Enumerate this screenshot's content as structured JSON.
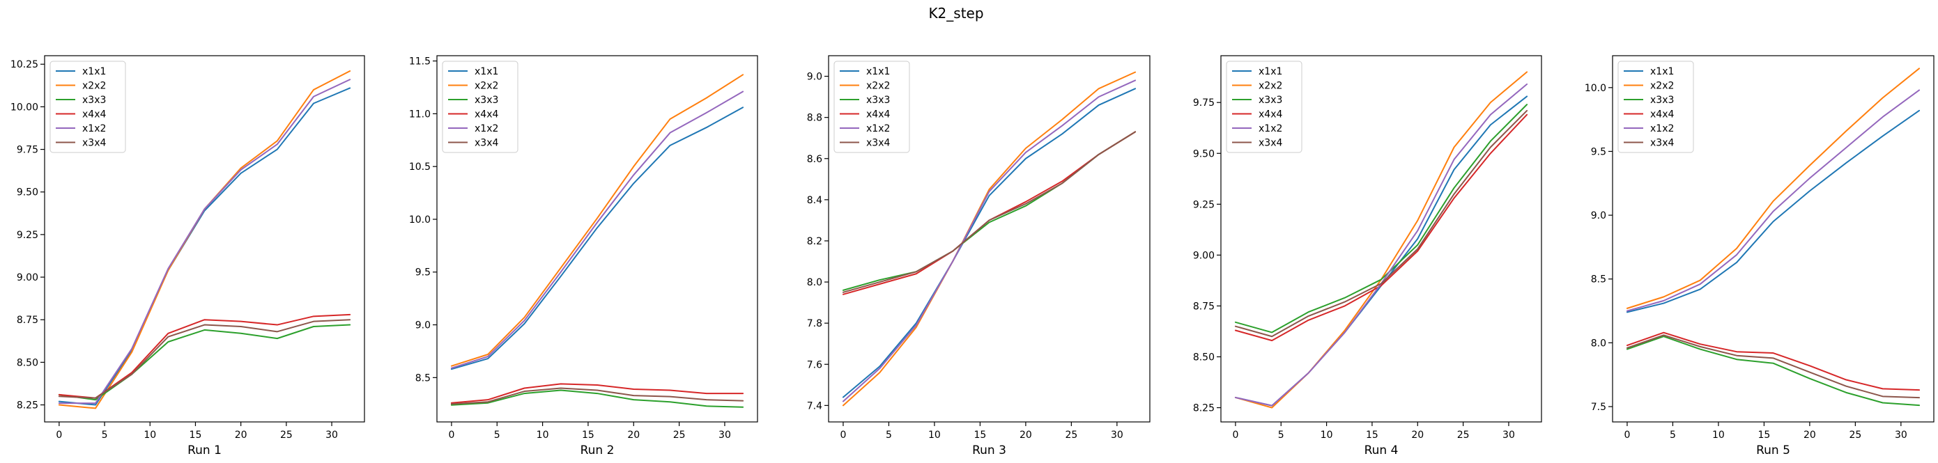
{
  "figure_title": "K2_step",
  "series_colors": {
    "x1x1": "#1f77b4",
    "x2x2": "#ff7f0e",
    "x3x3": "#2ca02c",
    "x4x4": "#d62728",
    "x1x2": "#9467bd",
    "x3x4": "#8c564b"
  },
  "chart_data": [
    {
      "type": "line",
      "title": "",
      "xlabel": "Run 1",
      "ylabel": "",
      "x": [
        0,
        4,
        8,
        12,
        16,
        20,
        24,
        28,
        32
      ],
      "xlim": [
        -1.6,
        33.6
      ],
      "ylim": [
        8.15,
        10.3
      ],
      "xticks": [
        0,
        5,
        10,
        15,
        20,
        25,
        30
      ],
      "yticks": [
        8.25,
        8.5,
        8.75,
        9.0,
        9.25,
        9.5,
        9.75,
        10.0,
        10.25
      ],
      "ytick_labels": [
        "8.25",
        "8.50",
        "8.75",
        "9.00",
        "9.25",
        "9.50",
        "9.75",
        "10.00",
        "10.25"
      ],
      "legend_position": "upper-left",
      "series": [
        {
          "name": "x1x1",
          "values": [
            8.27,
            8.25,
            8.57,
            9.04,
            9.39,
            9.61,
            9.75,
            10.02,
            10.11
          ]
        },
        {
          "name": "x2x2",
          "values": [
            8.25,
            8.23,
            8.56,
            9.04,
            9.4,
            9.64,
            9.8,
            10.1,
            10.21
          ]
        },
        {
          "name": "x3x3",
          "values": [
            8.31,
            8.28,
            8.43,
            8.62,
            8.69,
            8.67,
            8.64,
            8.71,
            8.72
          ]
        },
        {
          "name": "x4x4",
          "values": [
            8.31,
            8.29,
            8.44,
            8.67,
            8.75,
            8.74,
            8.72,
            8.77,
            8.78
          ]
        },
        {
          "name": "x1x2",
          "values": [
            8.26,
            8.26,
            8.58,
            9.05,
            9.4,
            9.63,
            9.78,
            10.06,
            10.16
          ]
        },
        {
          "name": "x3x4",
          "values": [
            8.3,
            8.29,
            8.43,
            8.65,
            8.72,
            8.71,
            8.68,
            8.74,
            8.75
          ]
        }
      ]
    },
    {
      "type": "line",
      "title": "",
      "xlabel": "Run 2",
      "ylabel": "",
      "x": [
        0,
        4,
        8,
        12,
        16,
        20,
        24,
        28,
        32
      ],
      "xlim": [
        -1.6,
        33.6
      ],
      "ylim": [
        8.08,
        11.55
      ],
      "xticks": [
        0,
        5,
        10,
        15,
        20,
        25,
        30
      ],
      "yticks": [
        8.5,
        9.0,
        9.5,
        10.0,
        10.5,
        11.0,
        11.5
      ],
      "ytick_labels": [
        "8.5",
        "9.0",
        "9.5",
        "10.0",
        "10.5",
        "11.0",
        "11.5"
      ],
      "legend_position": "upper-left",
      "series": [
        {
          "name": "x1x1",
          "values": [
            8.58,
            8.68,
            9.01,
            9.46,
            9.92,
            10.34,
            10.7,
            10.87,
            11.06
          ]
        },
        {
          "name": "x2x2",
          "values": [
            8.61,
            8.72,
            9.07,
            9.54,
            10.01,
            10.5,
            10.95,
            11.15,
            11.37
          ]
        },
        {
          "name": "x3x3",
          "values": [
            8.24,
            8.26,
            8.35,
            8.38,
            8.35,
            8.29,
            8.27,
            8.23,
            8.22
          ]
        },
        {
          "name": "x4x4",
          "values": [
            8.26,
            8.29,
            8.4,
            8.44,
            8.43,
            8.39,
            8.38,
            8.35,
            8.35
          ]
        },
        {
          "name": "x1x2",
          "values": [
            8.59,
            8.7,
            9.04,
            9.5,
            9.97,
            10.42,
            10.82,
            11.01,
            11.21
          ]
        },
        {
          "name": "x3x4",
          "values": [
            8.25,
            8.27,
            8.37,
            8.4,
            8.38,
            8.33,
            8.32,
            8.29,
            8.28
          ]
        }
      ]
    },
    {
      "type": "line",
      "title": "",
      "xlabel": "Run 3",
      "ylabel": "",
      "x": [
        0,
        4,
        8,
        12,
        16,
        20,
        24,
        28,
        32
      ],
      "xlim": [
        -1.6,
        33.6
      ],
      "ylim": [
        7.32,
        9.1
      ],
      "xticks": [
        0,
        5,
        10,
        15,
        20,
        25,
        30
      ],
      "yticks": [
        7.4,
        7.6,
        7.8,
        8.0,
        8.2,
        8.4,
        8.6,
        8.8,
        9.0
      ],
      "ytick_labels": [
        "7.4",
        "7.6",
        "7.8",
        "8.0",
        "8.2",
        "8.4",
        "8.6",
        "8.8",
        "9.0"
      ],
      "legend_position": "upper-left",
      "series": [
        {
          "name": "x1x1",
          "values": [
            7.44,
            7.59,
            7.8,
            8.1,
            8.42,
            8.6,
            8.72,
            8.86,
            8.94
          ]
        },
        {
          "name": "x2x2",
          "values": [
            7.4,
            7.56,
            7.78,
            8.1,
            8.45,
            8.65,
            8.79,
            8.94,
            9.02
          ]
        },
        {
          "name": "x3x3",
          "values": [
            7.96,
            8.01,
            8.05,
            8.15,
            8.29,
            8.37,
            8.48,
            8.62,
            8.73
          ]
        },
        {
          "name": "x4x4",
          "values": [
            7.94,
            7.99,
            8.04,
            8.15,
            8.3,
            8.39,
            8.49,
            8.62,
            8.73
          ]
        },
        {
          "name": "x1x2",
          "values": [
            7.42,
            7.58,
            7.79,
            8.1,
            8.44,
            8.63,
            8.76,
            8.9,
            8.98
          ]
        },
        {
          "name": "x3x4",
          "values": [
            7.95,
            8.0,
            8.05,
            8.15,
            8.3,
            8.38,
            8.48,
            8.62,
            8.73
          ]
        }
      ]
    },
    {
      "type": "line",
      "title": "",
      "xlabel": "Run 4",
      "ylabel": "",
      "x": [
        0,
        4,
        8,
        12,
        16,
        20,
        24,
        28,
        32
      ],
      "xlim": [
        -1.6,
        33.6
      ],
      "ylim": [
        8.18,
        9.98
      ],
      "xticks": [
        0,
        5,
        10,
        15,
        20,
        25,
        30
      ],
      "yticks": [
        8.25,
        8.5,
        8.75,
        9.0,
        9.25,
        9.5,
        9.75
      ],
      "ytick_labels": [
        "8.25",
        "8.50",
        "8.75",
        "9.00",
        "9.25",
        "9.50",
        "9.75"
      ],
      "legend_position": "upper-left",
      "series": [
        {
          "name": "x1x1",
          "values": [
            8.3,
            8.26,
            8.42,
            8.62,
            8.85,
            9.08,
            9.42,
            9.64,
            9.78
          ]
        },
        {
          "name": "x2x2",
          "values": [
            8.3,
            8.25,
            8.42,
            8.63,
            8.88,
            9.17,
            9.53,
            9.75,
            9.9
          ]
        },
        {
          "name": "x3x3",
          "values": [
            8.67,
            8.62,
            8.72,
            8.79,
            8.88,
            9.05,
            9.33,
            9.56,
            9.74
          ]
        },
        {
          "name": "x4x4",
          "values": [
            8.63,
            8.58,
            8.68,
            8.75,
            8.85,
            9.02,
            9.28,
            9.5,
            9.69
          ]
        },
        {
          "name": "x1x2",
          "values": [
            8.3,
            8.26,
            8.42,
            8.62,
            8.86,
            9.12,
            9.47,
            9.69,
            9.84
          ]
        },
        {
          "name": "x3x4",
          "values": [
            8.65,
            8.6,
            8.7,
            8.77,
            8.86,
            9.03,
            9.3,
            9.53,
            9.71
          ]
        }
      ]
    },
    {
      "type": "line",
      "title": "",
      "xlabel": "Run 5",
      "ylabel": "",
      "x": [
        0,
        4,
        8,
        12,
        16,
        20,
        24,
        28,
        32
      ],
      "xlim": [
        -1.6,
        33.6
      ],
      "ylim": [
        7.38,
        10.25
      ],
      "xticks": [
        0,
        5,
        10,
        15,
        20,
        25,
        30
      ],
      "yticks": [
        7.5,
        8.0,
        8.5,
        9.0,
        9.5,
        10.0
      ],
      "ytick_labels": [
        "7.5",
        "8.0",
        "8.5",
        "9.0",
        "9.5",
        "10.0"
      ],
      "legend_position": "upper-left",
      "series": [
        {
          "name": "x1x1",
          "values": [
            8.24,
            8.31,
            8.42,
            8.63,
            8.95,
            9.19,
            9.41,
            9.62,
            9.82
          ]
        },
        {
          "name": "x2x2",
          "values": [
            8.27,
            8.36,
            8.49,
            8.74,
            9.11,
            9.39,
            9.66,
            9.92,
            10.15
          ]
        },
        {
          "name": "x3x3",
          "values": [
            7.95,
            8.05,
            7.95,
            7.87,
            7.84,
            7.72,
            7.61,
            7.53,
            7.51
          ]
        },
        {
          "name": "x4x4",
          "values": [
            7.98,
            8.08,
            7.99,
            7.93,
            7.92,
            7.82,
            7.71,
            7.64,
            7.63
          ]
        },
        {
          "name": "x1x2",
          "values": [
            8.25,
            8.33,
            8.46,
            8.69,
            9.03,
            9.29,
            9.53,
            9.77,
            9.98
          ]
        },
        {
          "name": "x3x4",
          "values": [
            7.96,
            8.06,
            7.97,
            7.9,
            7.88,
            7.77,
            7.66,
            7.58,
            7.57
          ]
        }
      ]
    }
  ]
}
